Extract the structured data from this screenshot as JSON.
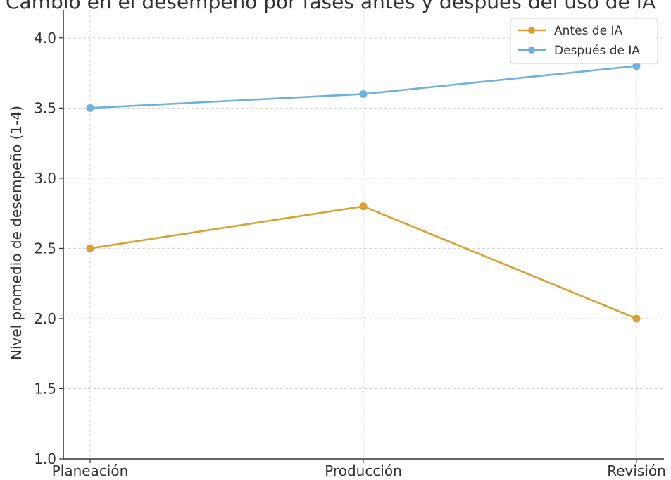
{
  "chart_data": {
    "type": "line",
    "title": "Cambio en el desempeño por fases antes y después del uso de IA",
    "xlabel": "",
    "ylabel": "Nivel promedio de desempeño (1-4)",
    "categories": [
      "Planeación",
      "Producción",
      "Revisión"
    ],
    "ylim": [
      1.0,
      4.2
    ],
    "yticks": [
      "1.0",
      "1.5",
      "2.0",
      "2.5",
      "3.0",
      "3.5",
      "4.0"
    ],
    "grid": true,
    "legend_position": "top-right",
    "series": [
      {
        "name": "Antes de IA",
        "values": [
          2.5,
          2.8,
          2.0
        ],
        "color": "#DAA032"
      },
      {
        "name": "Después de IA",
        "values": [
          3.5,
          3.6,
          3.8
        ],
        "color": "#6CB1E0"
      }
    ]
  }
}
